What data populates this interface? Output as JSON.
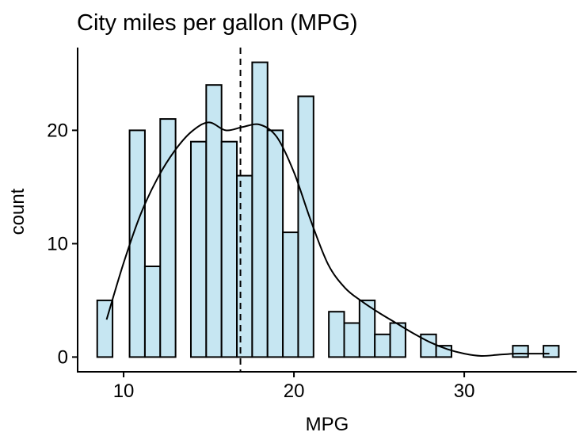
{
  "chart_data": {
    "type": "bar",
    "title": "City miles per gallon (MPG)",
    "xlabel": "MPG",
    "ylabel": "count",
    "xlim": [
      7.3,
      36.6
    ],
    "ylim": [
      -1.3,
      27.3
    ],
    "x_ticks": [
      10,
      20,
      30
    ],
    "y_ticks": [
      0,
      10,
      20
    ],
    "grid": false,
    "legend": "none",
    "bin_width": 0.9,
    "bin_centers": [
      8.9,
      10.8,
      11.7,
      12.6,
      14.4,
      15.3,
      16.2,
      17.1,
      18.0,
      18.9,
      19.8,
      20.7,
      22.5,
      23.4,
      24.3,
      25.2,
      26.1,
      27.9,
      28.8,
      33.3,
      35.1
    ],
    "values": [
      5,
      20,
      8,
      21,
      19,
      24,
      19,
      16,
      26,
      20,
      11,
      23,
      4,
      3,
      5,
      2,
      3,
      2,
      1,
      1,
      1
    ],
    "density_curve": {
      "x": [
        9,
        10,
        11,
        12,
        13,
        14,
        15,
        16,
        17,
        18,
        19,
        20,
        21,
        22,
        23,
        24,
        25,
        26,
        27,
        28,
        29,
        30,
        31,
        32,
        33,
        34,
        35
      ],
      "y": [
        3.3,
        8.3,
        12.6,
        15.8,
        18.2,
        19.9,
        20.7,
        20.0,
        20.3,
        20.5,
        19.4,
        16.3,
        12.0,
        8.2,
        6.1,
        4.9,
        3.9,
        3.0,
        2.1,
        1.3,
        0.7,
        0.3,
        0.1,
        0.2,
        0.3,
        0.3,
        0.3
      ]
    },
    "mean_line_x": 16.86,
    "colors": {
      "bar_fill": "#c6e6f2",
      "bar_stroke": "#000000",
      "line": "#000000"
    }
  }
}
